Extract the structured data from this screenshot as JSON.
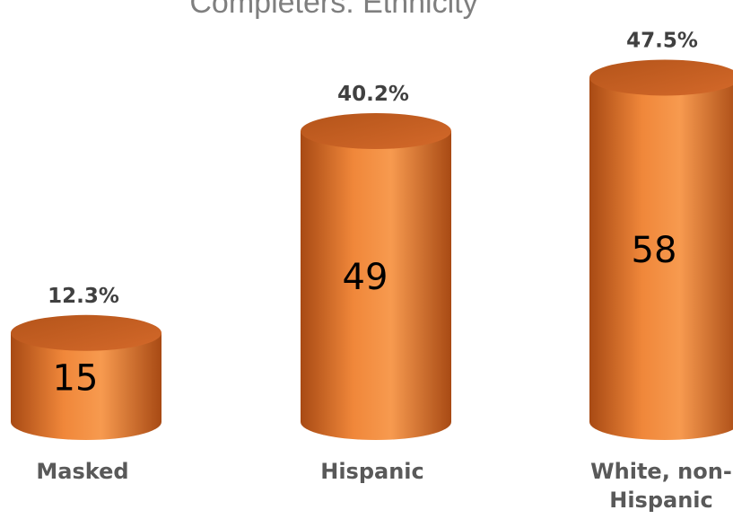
{
  "chart_data": {
    "type": "bar",
    "title": "Completers: Ethnicity",
    "categories": [
      "Masked",
      "Hispanic",
      "White, non-Hispanic"
    ],
    "category_lines": [
      [
        "Masked"
      ],
      [
        "Hispanic"
      ],
      [
        "White, non-",
        "Hispanic"
      ]
    ],
    "series": [
      {
        "values": [
          15,
          49,
          58
        ],
        "percent_labels": [
          "12.3%",
          "40.2%",
          "47.5%"
        ]
      }
    ],
    "bar_style": "3d-cylinder",
    "grid": false,
    "legend": "none",
    "ylim": [
      0,
      62
    ]
  },
  "colors": {
    "bar_main": "#e8762c",
    "bar_dark": "#a84a14",
    "bar_light": "#f79a4f",
    "top_face": "#c65e20",
    "title": "#7f7f7f",
    "pct_text": "#404040",
    "cat_text": "#595959"
  }
}
